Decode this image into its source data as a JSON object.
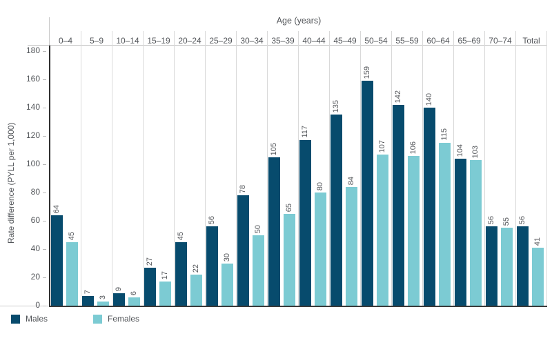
{
  "chart_data": {
    "type": "bar",
    "x_axis_title": "Age (years)",
    "y_axis_title": "Rate difference (PYLL per 1,000)",
    "categories": [
      "0–4",
      "5–9",
      "10–14",
      "15–19",
      "20–24",
      "25–29",
      "30–34",
      "35–39",
      "40–44",
      "45–49",
      "50–54",
      "55–59",
      "60–64",
      "65–69",
      "70–74",
      "Total"
    ],
    "series": [
      {
        "name": "Males",
        "color": "#074b6d",
        "values": [
          64,
          7,
          9,
          27,
          45,
          56,
          78,
          105,
          117,
          135,
          159,
          142,
          140,
          104,
          56,
          56
        ]
      },
      {
        "name": "Females",
        "color": "#7ccbd3",
        "values": [
          45,
          3,
          6,
          17,
          22,
          30,
          50,
          65,
          80,
          84,
          107,
          106,
          115,
          103,
          55,
          41
        ]
      }
    ],
    "y_ticks": [
      0,
      20,
      40,
      60,
      80,
      100,
      120,
      140,
      160,
      180
    ],
    "ylim": [
      0,
      180
    ],
    "grid": "vertical-category-separators-only",
    "legend_position": "bottom-left",
    "data_labels": "rotated-90-above-bars",
    "text_color": "#53565a"
  }
}
